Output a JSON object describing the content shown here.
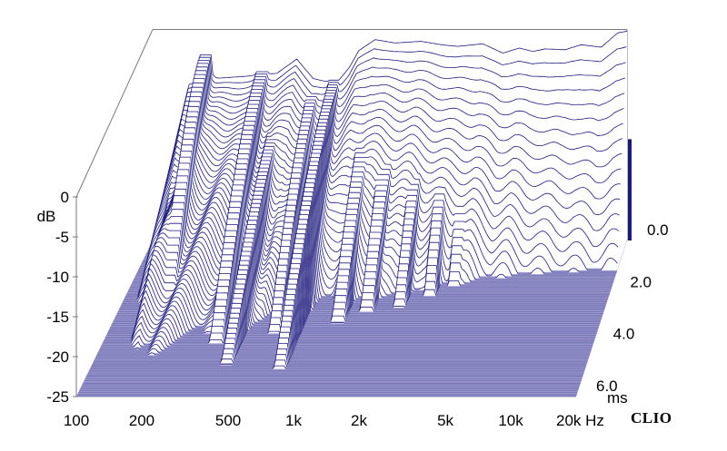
{
  "chart_data": {
    "type": "waterfall-3d",
    "title": "",
    "y_axis": {
      "unit_label": "dB",
      "range": [
        -25,
        0
      ],
      "ticks": [
        {
          "value": 0,
          "label": "0"
        },
        {
          "value": -5,
          "label": "-5"
        },
        {
          "value": -10,
          "label": "-10"
        },
        {
          "value": -15,
          "label": "-15"
        },
        {
          "value": -20,
          "label": "-20"
        },
        {
          "value": -25,
          "label": "-25"
        }
      ]
    },
    "x_axis": {
      "scale": "log",
      "range_hz": [
        100,
        20000
      ],
      "ticks": [
        {
          "value": 100,
          "label": "100"
        },
        {
          "value": 200,
          "label": "200"
        },
        {
          "value": 500,
          "label": "500"
        },
        {
          "value": 1000,
          "label": "1k"
        },
        {
          "value": 2000,
          "label": "2k"
        },
        {
          "value": 5000,
          "label": "5k"
        },
        {
          "value": 10000,
          "label": "10k"
        },
        {
          "value": 20000,
          "label": "20k Hz"
        }
      ]
    },
    "time_axis": {
      "unit_label": "ms",
      "range_ms": [
        0,
        6
      ],
      "ticks": [
        {
          "value": 0,
          "label": "0.0"
        },
        {
          "value": 2,
          "label": "2.0"
        },
        {
          "value": 4,
          "label": "4.0"
        },
        {
          "value": 6,
          "label": "6.0"
        }
      ]
    },
    "slice_count": 80,
    "front_response_db": [
      [
        100,
        -25
      ],
      [
        150,
        -6.5
      ],
      [
        200,
        -5.8
      ],
      [
        300,
        -5.5
      ],
      [
        400,
        -5.2
      ],
      [
        500,
        -3.5
      ],
      [
        600,
        -5.8
      ],
      [
        700,
        -6.2
      ],
      [
        800,
        -6
      ],
      [
        900,
        -4.5
      ],
      [
        1000,
        -2.5
      ],
      [
        1200,
        -1.2
      ],
      [
        1500,
        -1.6
      ],
      [
        2000,
        -1.4
      ],
      [
        2500,
        -1.8
      ],
      [
        3000,
        -2
      ],
      [
        4000,
        -1.7
      ],
      [
        5000,
        -2.8
      ],
      [
        6000,
        -2.2
      ],
      [
        7000,
        -2.6
      ],
      [
        8000,
        -2.3
      ],
      [
        10000,
        -2.4
      ],
      [
        12000,
        -1.8
      ],
      [
        15000,
        -2.1
      ],
      [
        18000,
        -0.4
      ],
      [
        20000,
        -0.2
      ]
    ],
    "resonances": [
      {
        "freq_hz": 180,
        "level_db": -3,
        "decay_ms": 3.5
      },
      {
        "freq_hz": 340,
        "level_db": -5,
        "decay_ms": 4
      },
      {
        "freq_hz": 420,
        "level_db": -9,
        "decay_ms": 4.8
      },
      {
        "freq_hz": 610,
        "level_db": -7,
        "decay_ms": 3.6
      },
      {
        "freq_hz": 760,
        "level_db": -6,
        "decay_ms": 5
      },
      {
        "freq_hz": 1150,
        "level_db": -9,
        "decay_ms": 3.2
      },
      {
        "freq_hz": 1500,
        "level_db": -10,
        "decay_ms": 2.8
      },
      {
        "freq_hz": 2100,
        "level_db": -11,
        "decay_ms": 2.6
      },
      {
        "freq_hz": 2800,
        "level_db": -11,
        "decay_ms": 2.2
      },
      {
        "freq_hz": 3500,
        "level_db": -12,
        "decay_ms": 1.8
      },
      {
        "freq_hz": 4800,
        "level_db": -14,
        "decay_ms": 1.2
      }
    ],
    "colors": {
      "line": "#1c1a7c",
      "floor": "#9b97cf",
      "floor_line": "#ffffff",
      "frame": "#7a7a7a",
      "text": "#000000"
    },
    "brand": "CLIO"
  }
}
